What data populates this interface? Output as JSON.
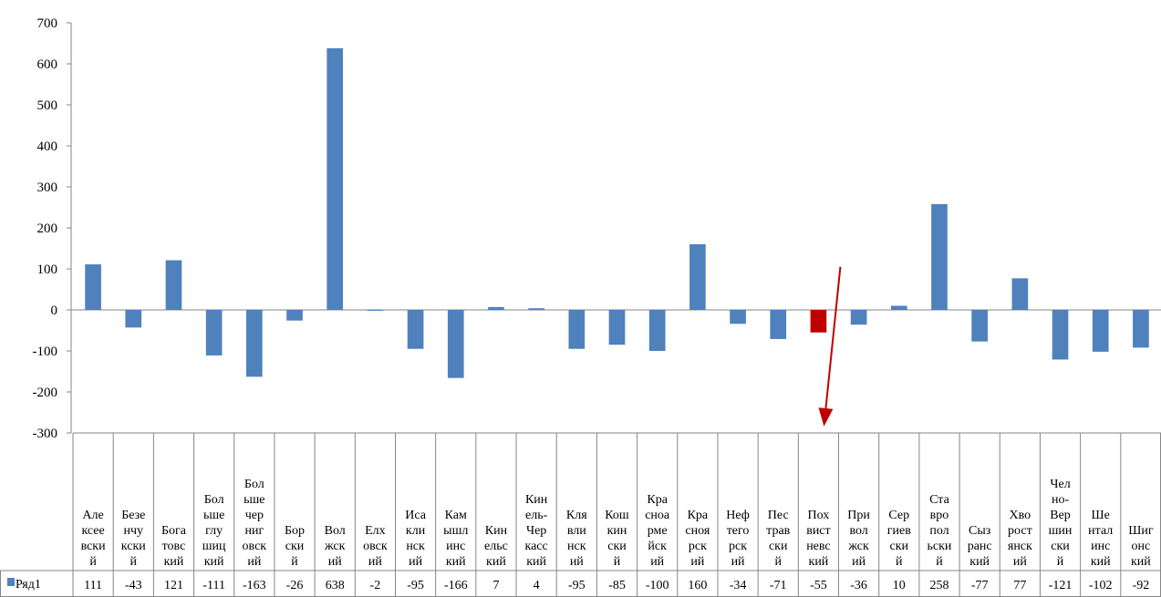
{
  "chart_data": {
    "type": "bar",
    "title": "",
    "xlabel": "",
    "ylabel": "",
    "ylim": [
      -300,
      700
    ],
    "yticks": [
      700,
      600,
      500,
      400,
      300,
      200,
      100,
      0,
      -100,
      -200,
      -300
    ],
    "grid": false,
    "legend": "data-table",
    "categories": [
      [
        "Але",
        "ксее",
        "вски",
        "й"
      ],
      [
        "Безе",
        "нчу",
        "кски",
        "й"
      ],
      [
        "Бога",
        "товс",
        "кий"
      ],
      [
        "Бол",
        "ьше",
        "глу",
        "шиц",
        "кий"
      ],
      [
        "Бол",
        "ьше",
        "чер",
        "ниг",
        "овск",
        "ий"
      ],
      [
        "Бор",
        "ски",
        "й"
      ],
      [
        "Вол",
        "жск",
        "ий"
      ],
      [
        "Елх",
        "овск",
        "ий"
      ],
      [
        "Иса",
        "кли",
        "нск",
        "ий"
      ],
      [
        "Кам",
        "ышл",
        "инс",
        "кий"
      ],
      [
        "Кин",
        "ельс",
        "кий"
      ],
      [
        "Кин",
        "ель-",
        "Чер",
        "касс",
        "кий"
      ],
      [
        "Кля",
        "вли",
        "нск",
        "ий"
      ],
      [
        "Кош",
        "кин",
        "ски",
        "й"
      ],
      [
        "Кра",
        "сноа",
        "рме",
        "йск",
        "ий"
      ],
      [
        "Кра",
        "сноя",
        "рск",
        "ий"
      ],
      [
        "Неф",
        "тего",
        "рск",
        "ий"
      ],
      [
        "Пес",
        "трав",
        "ски",
        "й"
      ],
      [
        "Пох",
        "вист",
        "невс",
        "кий"
      ],
      [
        "При",
        "вол",
        "жск",
        "ий"
      ],
      [
        "Сер",
        "гиев",
        "ски",
        "й"
      ],
      [
        "Ста",
        "вро",
        "пол",
        "ьски",
        "й"
      ],
      [
        "Сыз",
        "ранс",
        "кий"
      ],
      [
        "Хво",
        "рост",
        "янск",
        "ий"
      ],
      [
        "Чел",
        "но-",
        "Вер",
        "шин",
        "ски",
        "й"
      ],
      [
        "Ше",
        "нтал",
        "инс",
        "кий"
      ],
      [
        "Шиг",
        "онс",
        "кий"
      ]
    ],
    "series": [
      {
        "name": "Ряд1",
        "color": "#4f81bd",
        "values": [
          111,
          -43,
          121,
          -111,
          -163,
          -26,
          638,
          -2,
          -95,
          -166,
          7,
          4,
          -95,
          -85,
          -100,
          160,
          -34,
          -71,
          -55,
          -36,
          10,
          258,
          -77,
          77,
          -121,
          -102,
          -92
        ],
        "labels": [
          "111",
          "-43",
          "121",
          "-111",
          "-163",
          "-26",
          "638",
          "-2",
          "-95",
          "-166",
          "7",
          "4",
          "-95",
          "-85",
          "-100",
          "160",
          "-34",
          "-71",
          "-55",
          "-36",
          "10",
          "258",
          "-77",
          "77",
          "-121",
          "-102",
          "-92"
        ]
      }
    ],
    "highlight": {
      "index": 18,
      "color": "#c00000"
    },
    "annotation": {
      "type": "arrow",
      "color": "#c00000",
      "target_index": 18
    }
  }
}
